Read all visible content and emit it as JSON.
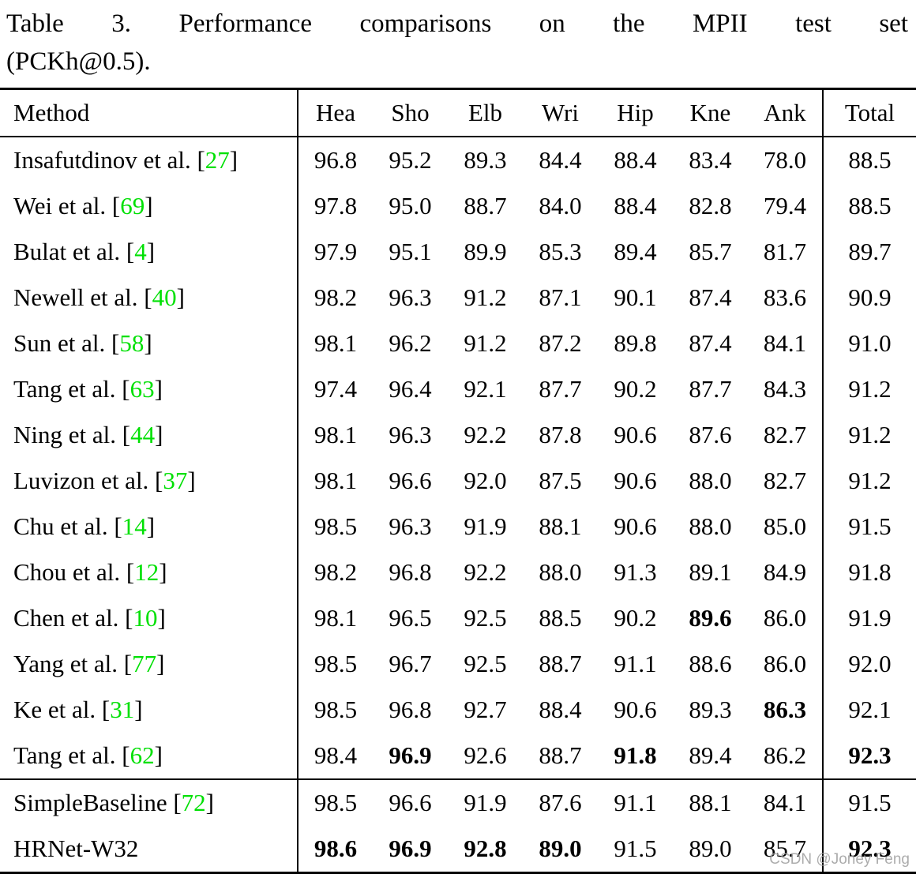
{
  "caption": {
    "line1": "Table 3. Performance comparisons on the MPII test set",
    "line2": "(PCKh@0.5)."
  },
  "colors": {
    "citation_green": "#00e004",
    "text_black": "#000000",
    "watermark_gray": "#9e9e9e"
  },
  "watermark": {
    "text": "CSDN @Joney Feng"
  },
  "table": {
    "columns": [
      "Method",
      "Hea",
      "Sho",
      "Elb",
      "Wri",
      "Hip",
      "Kne",
      "Ank",
      "Total"
    ],
    "groups": [
      {
        "rows": [
          {
            "method": "Insafutdinov et al.",
            "ref": "27",
            "scores": [
              "96.8",
              "95.2",
              "89.3",
              "84.4",
              "88.4",
              "83.4",
              "78.0",
              "88.5"
            ],
            "bold": []
          },
          {
            "method": "Wei et al.",
            "ref": "69",
            "scores": [
              "97.8",
              "95.0",
              "88.7",
              "84.0",
              "88.4",
              "82.8",
              "79.4",
              "88.5"
            ],
            "bold": []
          },
          {
            "method": "Bulat et al.",
            "ref": "4",
            "scores": [
              "97.9",
              "95.1",
              "89.9",
              "85.3",
              "89.4",
              "85.7",
              "81.7",
              "89.7"
            ],
            "bold": []
          },
          {
            "method": "Newell et al.",
            "ref": "40",
            "scores": [
              "98.2",
              "96.3",
              "91.2",
              "87.1",
              "90.1",
              "87.4",
              "83.6",
              "90.9"
            ],
            "bold": []
          },
          {
            "method": "Sun et al.",
            "ref": "58",
            "scores": [
              "98.1",
              "96.2",
              "91.2",
              "87.2",
              "89.8",
              "87.4",
              "84.1",
              "91.0"
            ],
            "bold": []
          },
          {
            "method": "Tang et al.",
            "ref": "63",
            "scores": [
              "97.4",
              "96.4",
              "92.1",
              "87.7",
              "90.2",
              "87.7",
              "84.3",
              "91.2"
            ],
            "bold": []
          },
          {
            "method": "Ning et al.",
            "ref": "44",
            "scores": [
              "98.1",
              "96.3",
              "92.2",
              "87.8",
              "90.6",
              "87.6",
              "82.7",
              "91.2"
            ],
            "bold": []
          },
          {
            "method": "Luvizon et al.",
            "ref": "37",
            "scores": [
              "98.1",
              "96.6",
              "92.0",
              "87.5",
              "90.6",
              "88.0",
              "82.7",
              "91.2"
            ],
            "bold": []
          },
          {
            "method": "Chu et al.",
            "ref": "14",
            "scores": [
              "98.5",
              "96.3",
              "91.9",
              "88.1",
              "90.6",
              "88.0",
              "85.0",
              "91.5"
            ],
            "bold": []
          },
          {
            "method": "Chou et al.",
            "ref": "12",
            "scores": [
              "98.2",
              "96.8",
              "92.2",
              "88.0",
              "91.3",
              "89.1",
              "84.9",
              "91.8"
            ],
            "bold": []
          },
          {
            "method": "Chen et al.",
            "ref": "10",
            "scores": [
              "98.1",
              "96.5",
              "92.5",
              "88.5",
              "90.2",
              "89.6",
              "86.0",
              "91.9"
            ],
            "bold": [
              5
            ]
          },
          {
            "method": "Yang et al.",
            "ref": "77",
            "scores": [
              "98.5",
              "96.7",
              "92.5",
              "88.7",
              "91.1",
              "88.6",
              "86.0",
              "92.0"
            ],
            "bold": []
          },
          {
            "method": "Ke et al.",
            "ref": "31",
            "scores": [
              "98.5",
              "96.8",
              "92.7",
              "88.4",
              "90.6",
              "89.3",
              "86.3",
              "92.1"
            ],
            "bold": [
              6
            ]
          },
          {
            "method": "Tang et al.",
            "ref": "62",
            "scores": [
              "98.4",
              "96.9",
              "92.6",
              "88.7",
              "91.8",
              "89.4",
              "86.2",
              "92.3"
            ],
            "bold": [
              1,
              4,
              7
            ]
          }
        ]
      },
      {
        "rows": [
          {
            "method": "SimpleBaseline",
            "ref": "72",
            "scores": [
              "98.5",
              "96.6",
              "91.9",
              "87.6",
              "91.1",
              "88.1",
              "84.1",
              "91.5"
            ],
            "bold": []
          },
          {
            "method": "HRNet-W32",
            "ref": null,
            "scores": [
              "98.6",
              "96.9",
              "92.8",
              "89.0",
              "91.5",
              "89.0",
              "85.7",
              "92.3"
            ],
            "bold": [
              0,
              1,
              2,
              3,
              7
            ]
          }
        ]
      }
    ]
  }
}
